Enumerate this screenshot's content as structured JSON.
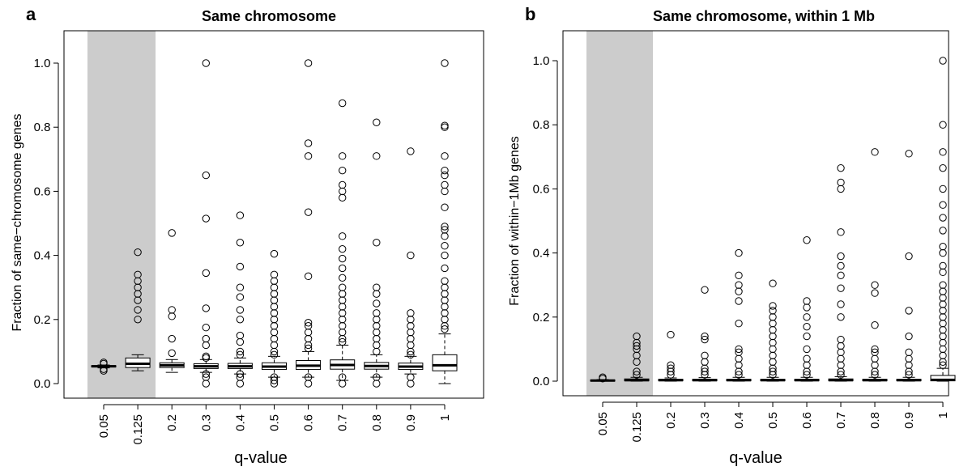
{
  "chart_data": [
    {
      "panel": "a",
      "type": "box",
      "title": "Same chromosome",
      "xlabel": "q-value",
      "ylabel": "Fraction of same−chromosome genes",
      "ylim": [
        0,
        1.0
      ],
      "yticks": [
        "0.0",
        "0.2",
        "0.4",
        "0.6",
        "0.8",
        "1.0"
      ],
      "shaded_categories": [
        "0.05",
        "0.125"
      ],
      "categories": [
        "0.05",
        "0.125",
        "0.2",
        "0.3",
        "0.4",
        "0.5",
        "0.6",
        "0.7",
        "0.8",
        "0.9",
        "1"
      ],
      "boxes": [
        {
          "q1": 0.052,
          "median": 0.054,
          "q3": 0.056,
          "wlo": 0.049,
          "whi": 0.058,
          "outliers": [
            0.04,
            0.045,
            0.062,
            0.066
          ]
        },
        {
          "q1": 0.05,
          "median": 0.062,
          "q3": 0.08,
          "wlo": 0.04,
          "whi": 0.09,
          "outliers": [
            0.2,
            0.23,
            0.26,
            0.28,
            0.3,
            0.32,
            0.34,
            0.41
          ]
        },
        {
          "q1": 0.05,
          "median": 0.057,
          "q3": 0.065,
          "wlo": 0.035,
          "whi": 0.075,
          "outliers": [
            0.095,
            0.14,
            0.21,
            0.23,
            0.47
          ]
        },
        {
          "q1": 0.047,
          "median": 0.054,
          "q3": 0.062,
          "wlo": 0.035,
          "whi": 0.075,
          "outliers": [
            0.0,
            0.02,
            0.03,
            0.08,
            0.085,
            0.12,
            0.14,
            0.175,
            0.235,
            0.345,
            0.515,
            0.65,
            1.0
          ]
        },
        {
          "q1": 0.047,
          "median": 0.054,
          "q3": 0.063,
          "wlo": 0.03,
          "whi": 0.08,
          "outliers": [
            0.0,
            0.02,
            0.03,
            0.09,
            0.1,
            0.13,
            0.15,
            0.2,
            0.23,
            0.27,
            0.3,
            0.365,
            0.44,
            0.525
          ]
        },
        {
          "q1": 0.044,
          "median": 0.053,
          "q3": 0.065,
          "wlo": 0.02,
          "whi": 0.085,
          "outliers": [
            0.0,
            0.01,
            0.02,
            0.09,
            0.1,
            0.12,
            0.14,
            0.16,
            0.18,
            0.2,
            0.22,
            0.24,
            0.26,
            0.28,
            0.3,
            0.32,
            0.34,
            0.405
          ]
        },
        {
          "q1": 0.044,
          "median": 0.056,
          "q3": 0.072,
          "wlo": 0.02,
          "whi": 0.1,
          "outliers": [
            0.0,
            0.02,
            0.11,
            0.12,
            0.14,
            0.16,
            0.18,
            0.19,
            0.335,
            0.535,
            0.71,
            0.75,
            1.0
          ]
        },
        {
          "q1": 0.045,
          "median": 0.058,
          "q3": 0.074,
          "wlo": 0.01,
          "whi": 0.12,
          "outliers": [
            0.0,
            0.02,
            0.13,
            0.14,
            0.16,
            0.18,
            0.2,
            0.22,
            0.24,
            0.26,
            0.28,
            0.3,
            0.33,
            0.36,
            0.39,
            0.42,
            0.46,
            0.58,
            0.6,
            0.62,
            0.665,
            0.71,
            0.875
          ]
        },
        {
          "q1": 0.045,
          "median": 0.055,
          "q3": 0.066,
          "wlo": 0.02,
          "whi": 0.09,
          "outliers": [
            0.0,
            0.02,
            0.1,
            0.12,
            0.14,
            0.16,
            0.18,
            0.2,
            0.22,
            0.25,
            0.28,
            0.3,
            0.44,
            0.71,
            0.815
          ]
        },
        {
          "q1": 0.044,
          "median": 0.053,
          "q3": 0.064,
          "wlo": 0.03,
          "whi": 0.085,
          "outliers": [
            0.0,
            0.02,
            0.09,
            0.1,
            0.12,
            0.14,
            0.16,
            0.18,
            0.2,
            0.22,
            0.4,
            0.725
          ]
        },
        {
          "q1": 0.04,
          "median": 0.057,
          "q3": 0.09,
          "wlo": 0.0,
          "whi": 0.155,
          "outliers": [
            0.17,
            0.18,
            0.2,
            0.22,
            0.24,
            0.26,
            0.28,
            0.3,
            0.32,
            0.36,
            0.4,
            0.43,
            0.46,
            0.48,
            0.49,
            0.55,
            0.6,
            0.62,
            0.65,
            0.665,
            0.71,
            0.8,
            0.805,
            1.0
          ]
        }
      ]
    },
    {
      "panel": "b",
      "type": "box",
      "title": "Same chromosome, within 1 Mb",
      "xlabel": "q-value",
      "ylabel": "Fraction of within−1Mb genes",
      "ylim": [
        0,
        1.0
      ],
      "yticks": [
        "0.0",
        "0.2",
        "0.4",
        "0.6",
        "0.8",
        "1.0"
      ],
      "shaded_categories": [
        "0.05",
        "0.125"
      ],
      "categories": [
        "0.05",
        "0.125",
        "0.2",
        "0.3",
        "0.4",
        "0.5",
        "0.6",
        "0.7",
        "0.8",
        "0.9",
        "1"
      ],
      "boxes": [
        {
          "q1": 0.0,
          "median": 0.002,
          "q3": 0.004,
          "wlo": 0.0,
          "whi": 0.005,
          "outliers": [
            0.008,
            0.012
          ]
        },
        {
          "q1": 0.001,
          "median": 0.003,
          "q3": 0.007,
          "wlo": 0.0,
          "whi": 0.012,
          "outliers": [
            0.02,
            0.03,
            0.06,
            0.08,
            0.1,
            0.11,
            0.12,
            0.14
          ]
        },
        {
          "q1": 0.001,
          "median": 0.003,
          "q3": 0.006,
          "wlo": 0.0,
          "whi": 0.01,
          "outliers": [
            0.02,
            0.03,
            0.04,
            0.05,
            0.145
          ]
        },
        {
          "q1": 0.001,
          "median": 0.003,
          "q3": 0.006,
          "wlo": 0.0,
          "whi": 0.011,
          "outliers": [
            0.02,
            0.03,
            0.04,
            0.06,
            0.08,
            0.13,
            0.14,
            0.285
          ]
        },
        {
          "q1": 0.001,
          "median": 0.003,
          "q3": 0.006,
          "wlo": 0.0,
          "whi": 0.012,
          "outliers": [
            0.02,
            0.03,
            0.05,
            0.07,
            0.09,
            0.1,
            0.18,
            0.25,
            0.28,
            0.3,
            0.33,
            0.4
          ]
        },
        {
          "q1": 0.001,
          "median": 0.003,
          "q3": 0.006,
          "wlo": 0.0,
          "whi": 0.012,
          "outliers": [
            0.02,
            0.03,
            0.04,
            0.06,
            0.08,
            0.1,
            0.12,
            0.14,
            0.16,
            0.18,
            0.2,
            0.22,
            0.235,
            0.305
          ]
        },
        {
          "q1": 0.001,
          "median": 0.003,
          "q3": 0.006,
          "wlo": 0.0,
          "whi": 0.012,
          "outliers": [
            0.02,
            0.03,
            0.05,
            0.07,
            0.1,
            0.14,
            0.17,
            0.2,
            0.23,
            0.25,
            0.44
          ]
        },
        {
          "q1": 0.001,
          "median": 0.003,
          "q3": 0.007,
          "wlo": 0.0,
          "whi": 0.014,
          "outliers": [
            0.02,
            0.03,
            0.05,
            0.07,
            0.09,
            0.11,
            0.13,
            0.2,
            0.24,
            0.29,
            0.33,
            0.36,
            0.39,
            0.465,
            0.6,
            0.62,
            0.665
          ]
        },
        {
          "q1": 0.001,
          "median": 0.003,
          "q3": 0.006,
          "wlo": 0.0,
          "whi": 0.012,
          "outliers": [
            0.02,
            0.03,
            0.05,
            0.07,
            0.09,
            0.1,
            0.175,
            0.275,
            0.3,
            0.715
          ]
        },
        {
          "q1": 0.001,
          "median": 0.003,
          "q3": 0.006,
          "wlo": 0.0,
          "whi": 0.012,
          "outliers": [
            0.02,
            0.03,
            0.05,
            0.07,
            0.09,
            0.14,
            0.22,
            0.39,
            0.71
          ]
        },
        {
          "q1": 0.001,
          "median": 0.004,
          "q3": 0.018,
          "wlo": 0.0,
          "whi": 0.04,
          "outliers": [
            0.05,
            0.06,
            0.08,
            0.1,
            0.12,
            0.14,
            0.16,
            0.18,
            0.2,
            0.22,
            0.24,
            0.26,
            0.28,
            0.3,
            0.34,
            0.36,
            0.4,
            0.42,
            0.47,
            0.51,
            0.55,
            0.6,
            0.665,
            0.715,
            0.8,
            1.0
          ]
        }
      ]
    }
  ]
}
